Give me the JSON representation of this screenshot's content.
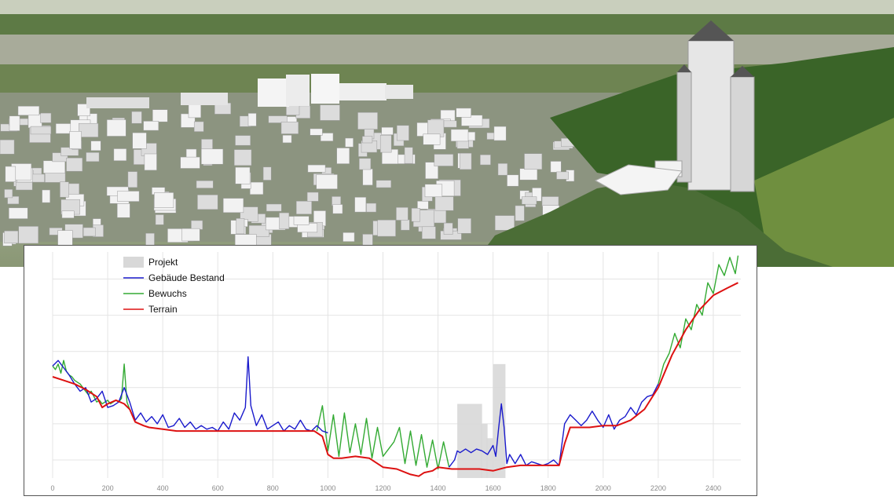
{
  "scene": {
    "description_icon": "aerial-3d-city-model",
    "colors": {
      "sky": "#d8dccf",
      "forest": "#3f6a2c",
      "building": "#f0f0f0",
      "ground": "#7f8b68"
    }
  },
  "chart_data": {
    "type": "line",
    "xlim": [
      0,
      2500
    ],
    "ylim": [
      270,
      395
    ],
    "x_ticks": [
      "0",
      "200",
      "400",
      "600",
      "800",
      "1000",
      "1200",
      "1400",
      "1600",
      "1800",
      "2000",
      "2200",
      "2400"
    ],
    "y_ticks": [
      "280",
      "300",
      "320",
      "340",
      "360",
      "380",
      "400"
    ],
    "grid": true,
    "legend_placement": "top-left",
    "legend": [
      {
        "label": "Projekt",
        "color": "#d8d8d8",
        "kind": "box"
      },
      {
        "label": "Gebäude Bestand",
        "color": "#1a1acc",
        "kind": "line"
      },
      {
        "label": "Bewuchs",
        "color": "#33aa33",
        "kind": "line"
      },
      {
        "label": "Terrain",
        "color": "#dd1111",
        "kind": "line"
      }
    ],
    "projekt": [
      {
        "x0": 1470,
        "x1": 1560,
        "top": 311
      },
      {
        "x0": 1555,
        "x1": 1580,
        "top": 300
      },
      {
        "x0": 1575,
        "x1": 1600,
        "top": 292
      },
      {
        "x0": 1600,
        "x1": 1645,
        "top": 333
      }
    ],
    "series": [
      {
        "name": "Terrain",
        "color": "#dd1111",
        "x": [
          0,
          40,
          80,
          120,
          160,
          180,
          200,
          230,
          260,
          280,
          300,
          330,
          350,
          400,
          450,
          500,
          550,
          600,
          650,
          700,
          750,
          800,
          850,
          900,
          950,
          980,
          1000,
          1020,
          1050,
          1100,
          1150,
          1200,
          1250,
          1300,
          1330,
          1350,
          1380,
          1400,
          1450,
          1500,
          1550,
          1600,
          1650,
          1700,
          1750,
          1800,
          1840,
          1860,
          1880,
          1900,
          1950,
          2000,
          2050,
          2100,
          2150,
          2200,
          2250,
          2300,
          2350,
          2400,
          2450,
          2490
        ],
        "y": [
          326,
          324,
          322,
          319,
          315,
          309,
          311,
          313,
          311,
          308,
          301,
          299,
          298,
          297,
          296,
          296,
          296,
          296,
          296,
          296,
          296,
          296,
          296,
          296,
          296,
          293,
          283,
          281,
          281,
          282,
          281,
          276,
          275,
          272,
          271,
          273,
          274,
          276,
          275,
          275,
          275,
          274,
          276,
          277,
          277,
          277,
          277,
          289,
          298,
          298,
          298,
          299,
          299,
          302,
          308,
          320,
          338,
          352,
          363,
          371,
          375,
          378
        ]
      },
      {
        "name": "Gebäude Bestand",
        "color": "#1a1acc",
        "x": [
          0,
          20,
          40,
          60,
          80,
          100,
          120,
          140,
          160,
          180,
          200,
          220,
          240,
          260,
          280,
          300,
          320,
          340,
          360,
          380,
          400,
          420,
          440,
          460,
          480,
          500,
          520,
          540,
          560,
          580,
          600,
          620,
          640,
          660,
          680,
          700,
          710,
          720,
          740,
          760,
          780,
          800,
          820,
          840,
          860,
          880,
          900,
          920,
          940,
          960,
          980,
          1000,
          1440,
          1460,
          1470,
          1480,
          1500,
          1520,
          1540,
          1560,
          1580,
          1600,
          1610,
          1620,
          1630,
          1640,
          1650,
          1660,
          1680,
          1700,
          1720,
          1740,
          1760,
          1780,
          1800,
          1820,
          1840,
          1860,
          1880,
          1900,
          1920,
          1940,
          1960,
          1980,
          2000,
          2020,
          2040,
          2060,
          2080,
          2100,
          2120,
          2140,
          2160,
          2180,
          2200
        ],
        "y": [
          332,
          335,
          331,
          327,
          322,
          318,
          320,
          312,
          314,
          318,
          309,
          310,
          312,
          320,
          312,
          302,
          306,
          301,
          304,
          300,
          305,
          298,
          299,
          303,
          298,
          301,
          297,
          299,
          297,
          298,
          296,
          301,
          297,
          306,
          302,
          309,
          337,
          310,
          299,
          305,
          297,
          299,
          301,
          296,
          299,
          297,
          302,
          297,
          296,
          299,
          296,
          295,
          276,
          280,
          285,
          284,
          286,
          284,
          286,
          285,
          283,
          288,
          282,
          297,
          311,
          298,
          278,
          283,
          278,
          283,
          277,
          279,
          278,
          277,
          278,
          280,
          277,
          300,
          305,
          302,
          299,
          302,
          307,
          302,
          298,
          305,
          297,
          302,
          304,
          309,
          305,
          312,
          315,
          316,
          322
        ]
      },
      {
        "name": "Bewuchs",
        "color": "#33aa33",
        "x": [
          0,
          10,
          20,
          30,
          40,
          50,
          60,
          70,
          80,
          90,
          100,
          110,
          120,
          130,
          140,
          150,
          160,
          170,
          180,
          190,
          200,
          210,
          220,
          230,
          240,
          250,
          260,
          270,
          280,
          960,
          980,
          1000,
          1020,
          1040,
          1060,
          1080,
          1100,
          1120,
          1140,
          1160,
          1180,
          1200,
          1240,
          1260,
          1280,
          1300,
          1320,
          1340,
          1360,
          1380,
          1400,
          1420,
          1440,
          2200,
          2220,
          2240,
          2260,
          2280,
          2300,
          2320,
          2340,
          2360,
          2380,
          2400,
          2420,
          2440,
          2460,
          2480,
          2490
        ],
        "y": [
          332,
          330,
          333,
          328,
          335,
          329,
          327,
          326,
          324,
          323,
          322,
          320,
          318,
          316,
          318,
          315,
          312,
          313,
          311,
          312,
          313,
          311,
          312,
          313,
          312,
          314,
          333,
          312,
          308,
          296,
          310,
          285,
          305,
          282,
          306,
          284,
          300,
          283,
          303,
          281,
          298,
          282,
          290,
          298,
          278,
          296,
          277,
          294,
          276,
          291,
          275,
          290,
          276,
          322,
          333,
          339,
          350,
          342,
          358,
          352,
          366,
          360,
          378,
          372,
          388,
          382,
          392,
          383,
          393
        ]
      }
    ]
  }
}
